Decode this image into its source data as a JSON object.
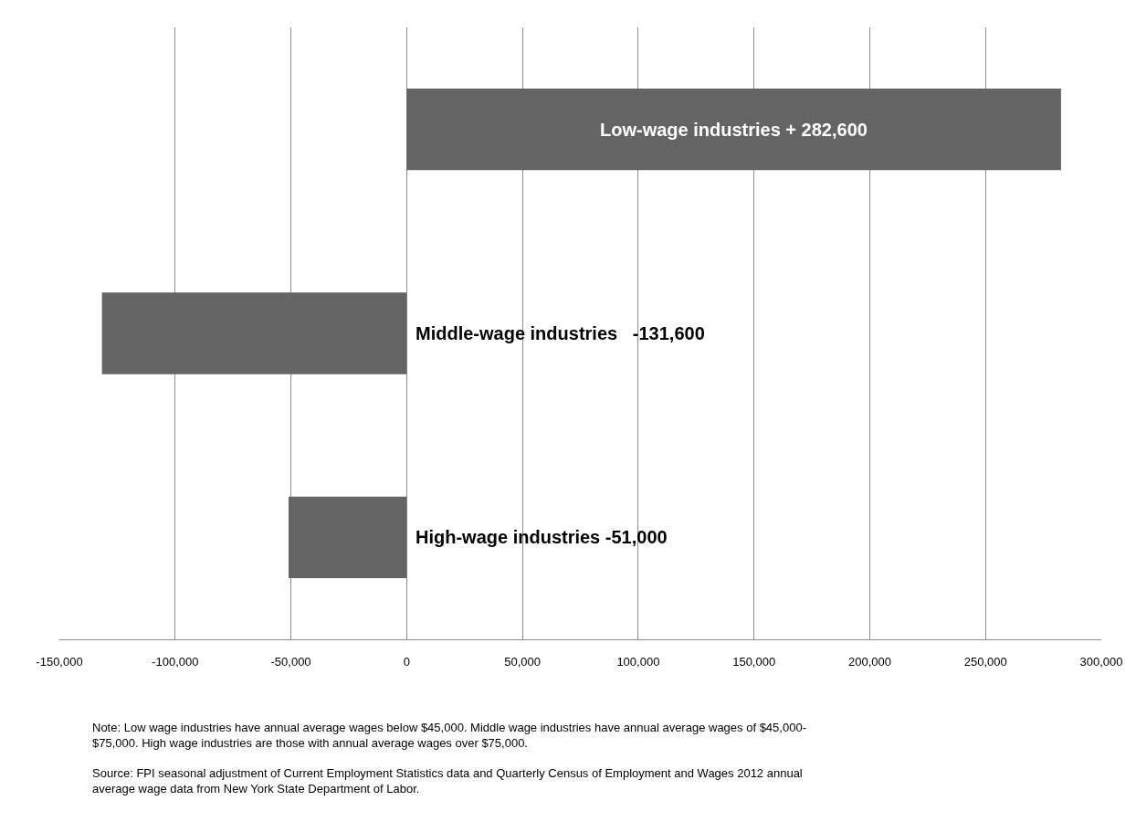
{
  "chart_data": {
    "type": "bar",
    "orientation": "horizontal",
    "categories": [
      null,
      null,
      null
    ],
    "values": [
      282600,
      -131600,
      -51000
    ],
    "value_labels": [
      "Low-wage industries + 282,600",
      "Middle-wage industries   -131,600",
      "High-wage industries -51,000"
    ],
    "color": "#646464",
    "xlim": [
      -150000,
      300000
    ],
    "xticks": [
      {
        "value": -150000,
        "label": "-150,000"
      },
      {
        "value": -100000,
        "label": "-100,000"
      },
      {
        "value": -50000,
        "label": "-50,000"
      },
      0,
      {
        "value": 50000,
        "label": "50,000"
      },
      {
        "value": 100000,
        "label": "100,000"
      },
      {
        "value": 150000,
        "label": "150,000"
      },
      {
        "value": 200000,
        "label": "200,000"
      },
      {
        "value": 250000,
        "label": "250,000"
      },
      {
        "value": 300000,
        "label": "300,000"
      }
    ],
    "tick_labels": "x",
    "grid": "x",
    "annotations": [
      "Note: Low wage industries have annual average wages below $45,000. Middle wage industries have annual average wages of $45,000-\n$75,000. High wage industries are those with annual average wages over $75,000.",
      "Source: FPI seasonal adjustment of Current Employment Statistics data and Quarterly Census of Employment and Wages 2012 annual\naverage wage data from New York State Department of Labor."
    ]
  }
}
